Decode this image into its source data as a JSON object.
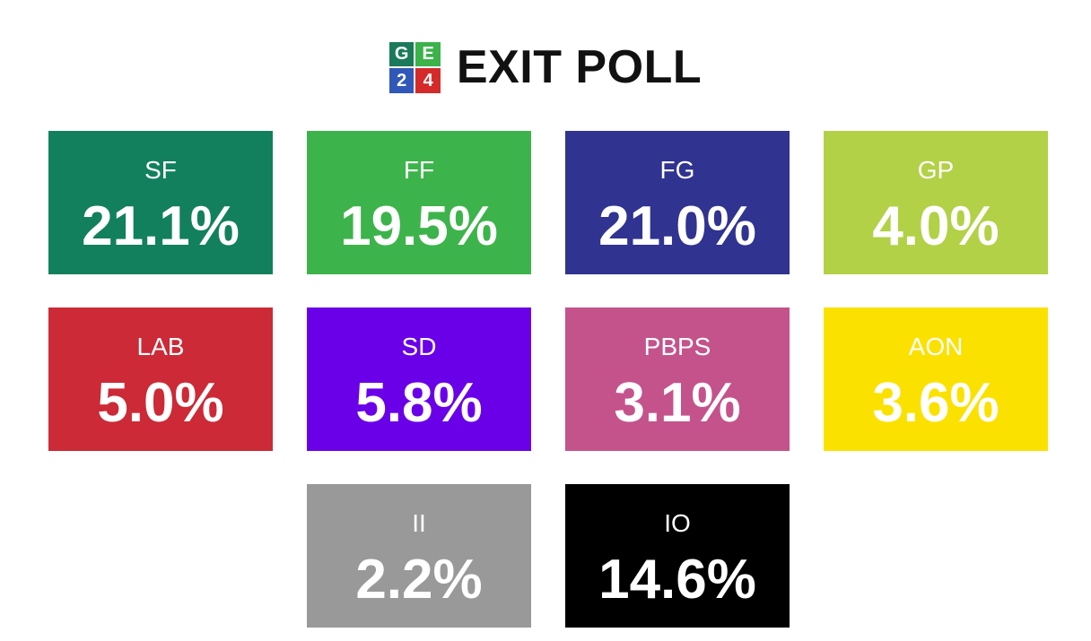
{
  "header": {
    "logo": [
      "G",
      "E",
      "2",
      "4"
    ],
    "logo_colors": [
      "#1a7a5a",
      "#3cb24a",
      "#2f58b8",
      "#d42a2a"
    ],
    "title": "EXIT POLL"
  },
  "chart_data": {
    "type": "table",
    "title": "EXIT POLL",
    "categories": [
      "SF",
      "FF",
      "FG",
      "GP",
      "LAB",
      "SD",
      "PBPS",
      "AON",
      "II",
      "IO"
    ],
    "values": [
      21.1,
      19.5,
      21.0,
      4.0,
      5.0,
      5.8,
      3.1,
      3.6,
      2.2,
      14.6
    ],
    "labels": [
      "21.1%",
      "19.5%",
      "21.0%",
      "4.0%",
      "5.0%",
      "5.8%",
      "3.1%",
      "3.6%",
      "2.2%",
      "14.6%"
    ],
    "unit": "%",
    "colors": [
      "#12805c",
      "#3db44b",
      "#303390",
      "#b2d147",
      "#cc2a36",
      "#6a00e8",
      "#c4538c",
      "#fbe100",
      "#999999",
      "#000000"
    ]
  }
}
